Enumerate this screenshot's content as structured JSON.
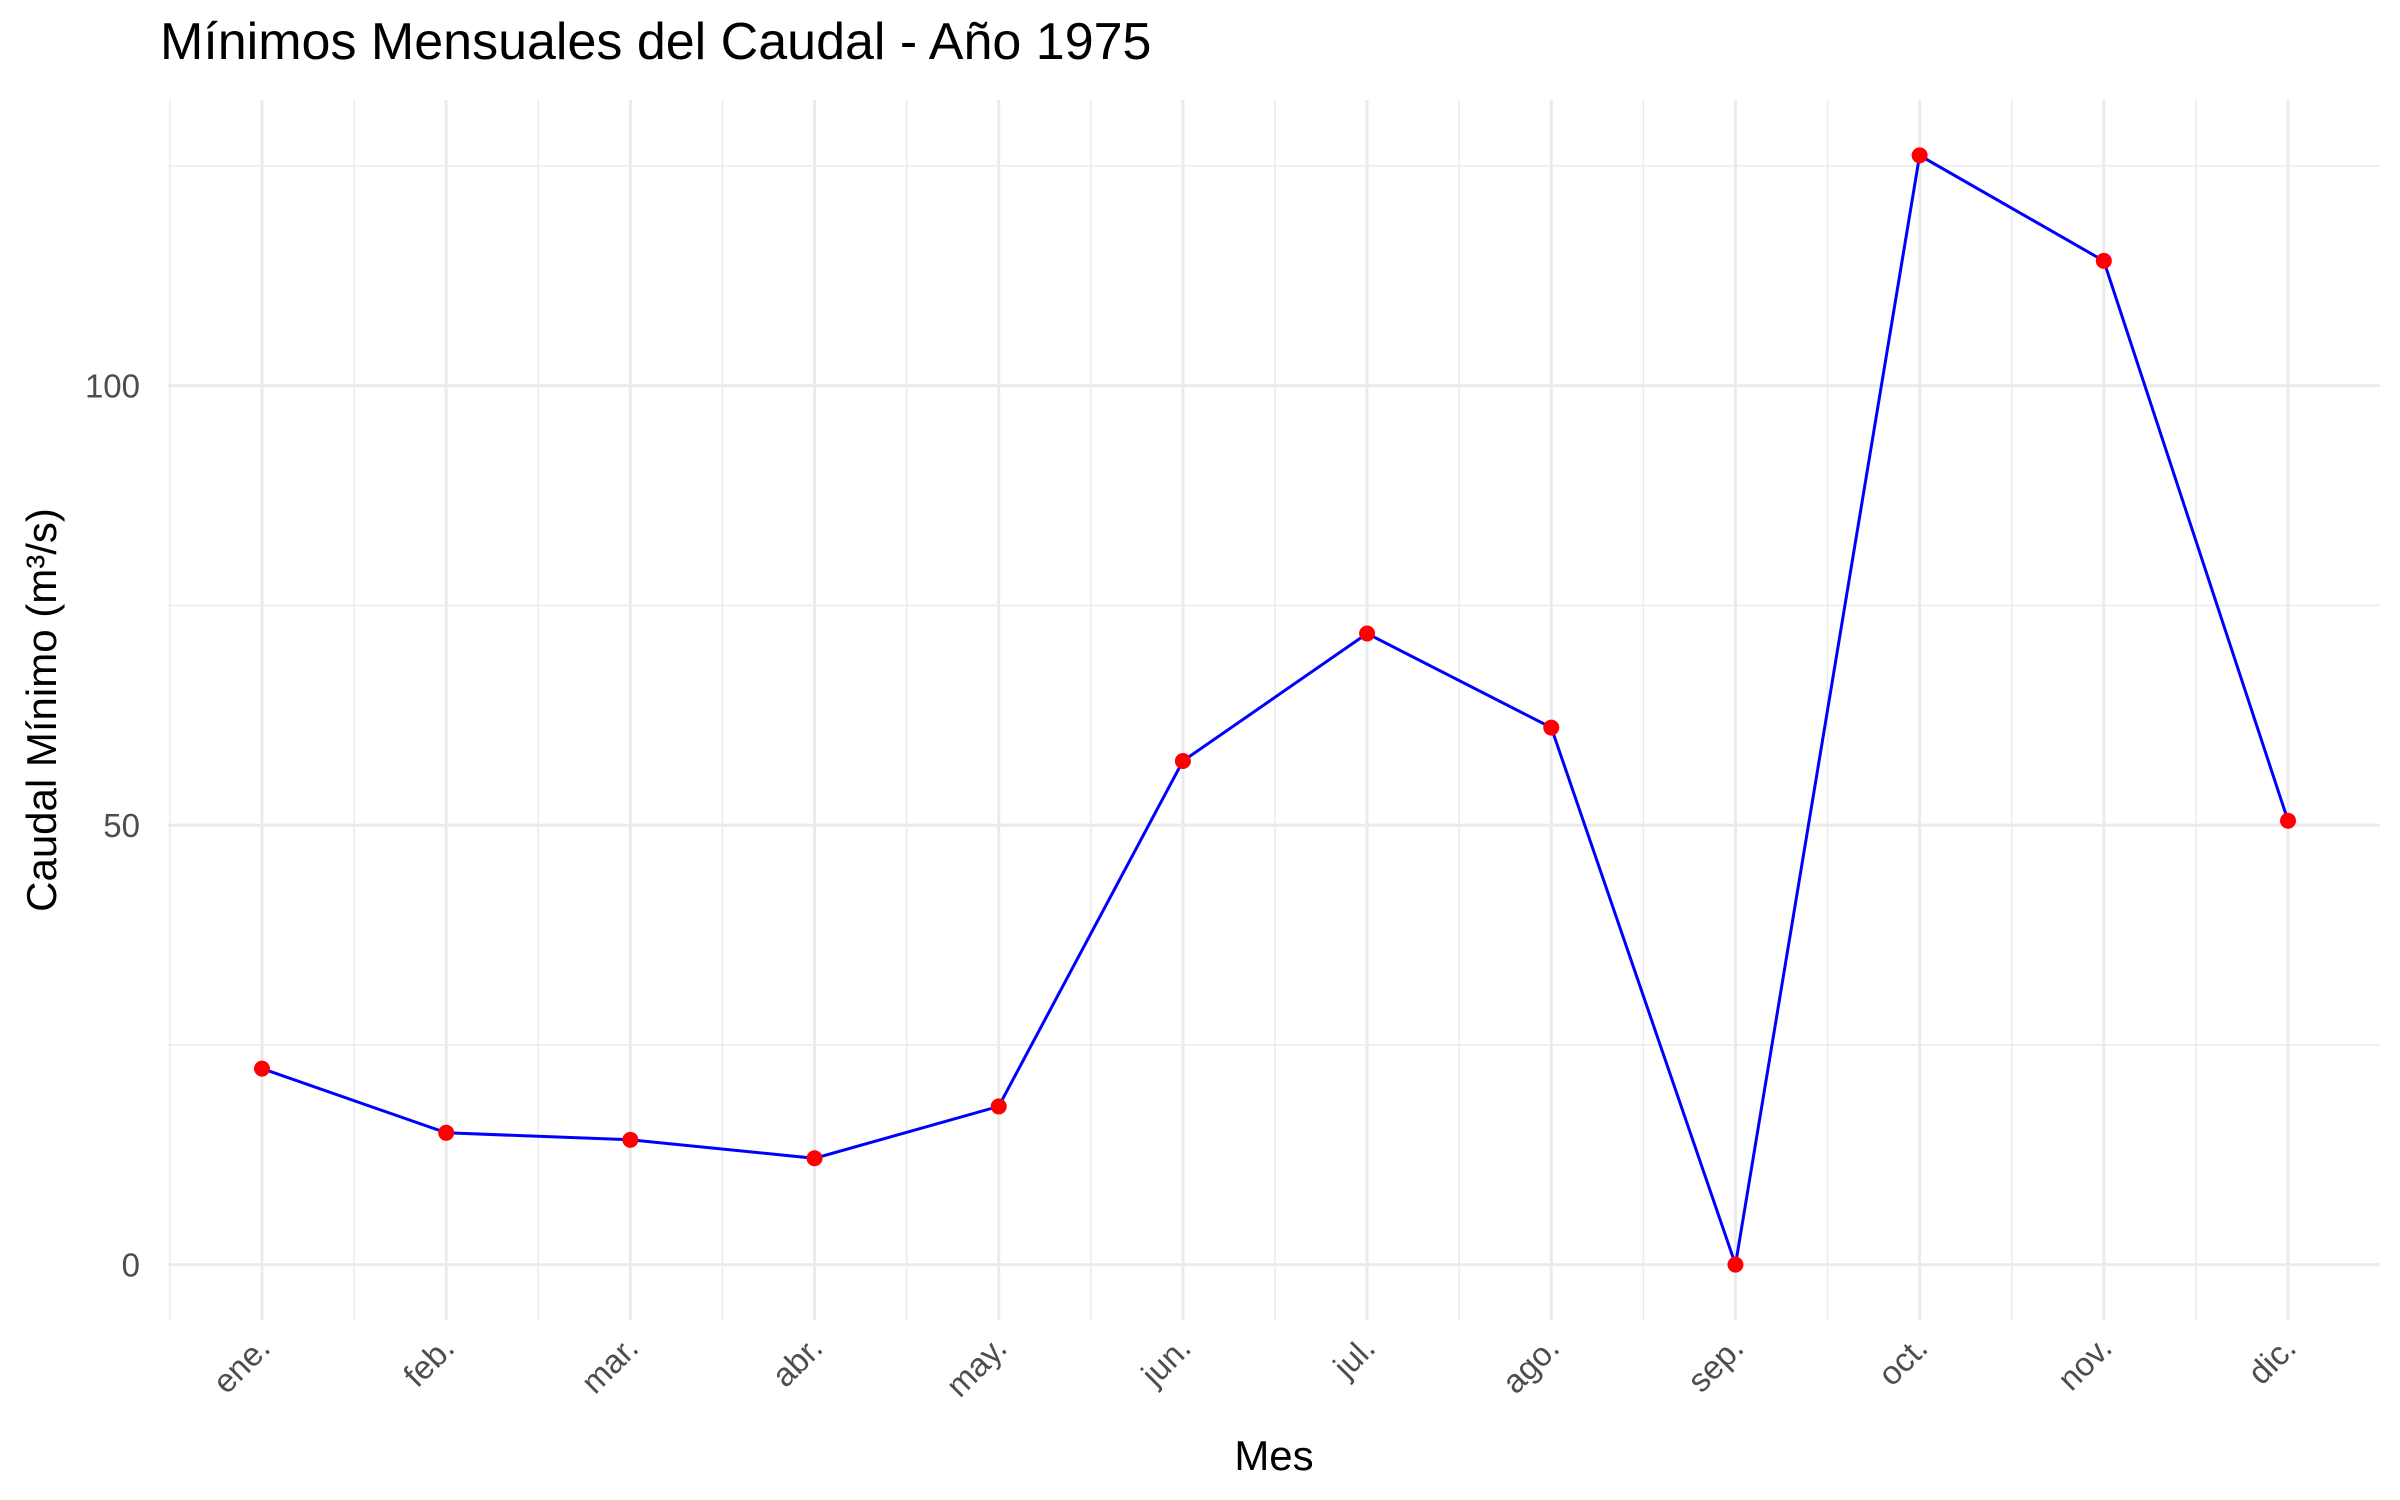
{
  "chart_data": {
    "type": "line",
    "title": "Mínimos Mensuales del Caudal - Año 1975",
    "xlabel": "Mes",
    "ylabel": "Caudal Mínimo (m³/s)",
    "categories": [
      "ene.",
      "feb.",
      "mar.",
      "abr.",
      "may.",
      "jun.",
      "jul.",
      "ago.",
      "sep.",
      "oct.",
      "nov.",
      "dic."
    ],
    "series": [
      {
        "values": [
          22.3,
          15.0,
          14.2,
          12.1,
          18.0,
          57.3,
          71.8,
          61.1,
          0.0,
          126.2,
          114.2,
          50.5
        ]
      }
    ],
    "y_ticks": [
      0,
      50,
      100
    ],
    "ylim": [
      -6.3,
      132.5
    ],
    "grid": true,
    "line_color": "#0000ff",
    "point_color": "#ff0000"
  }
}
